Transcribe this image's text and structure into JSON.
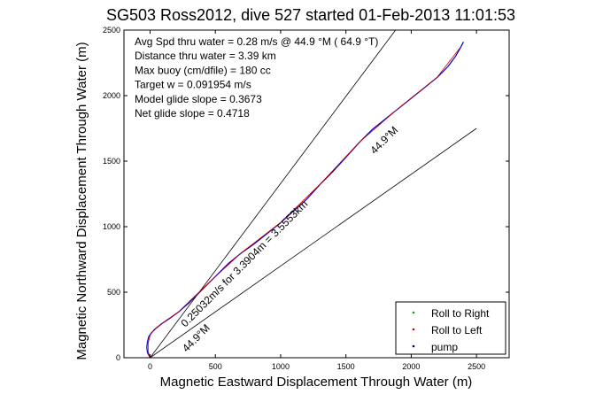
{
  "chart_data": {
    "type": "line",
    "title": "SG503 Ross2012, dive 527 started 01-Feb-2013 11:01:53",
    "xlabel": "Magnetic Eastward Displacement Through Water (m)",
    "ylabel": "Magnetic Northward Displacement Through Water (m)",
    "xlim": [
      -200,
      2750
    ],
    "ylim": [
      0,
      2500
    ],
    "xticks": [
      0,
      500,
      1000,
      1500,
      2000,
      2500
    ],
    "yticks": [
      0,
      500,
      1000,
      1500,
      2000,
      2500
    ],
    "grid": false,
    "legend_position": "bottom-right",
    "legend": [
      {
        "label": "Roll to Right",
        "color": "#00aa00",
        "marker": "."
      },
      {
        "label": "Roll to Left",
        "color": "#cc0000",
        "marker": "."
      },
      {
        "label": "pump",
        "color": "#000080",
        "marker": "."
      }
    ],
    "info_text": [
      "Avg Spd thru water =  0.28 m/s @  44.9   °M ( 64.9 °T)",
      "Distance thru water =  3.39 km",
      "Max buoy (cm/dfile) = 180 cc",
      "Target w = 0.091954 m/s",
      "Model glide slope = 0.3673",
      "Net glide slope = 0.4718"
    ],
    "annotations": [
      {
        "text": "44.9°M",
        "x": 1720,
        "y": 1550,
        "angle_deg": 45
      },
      {
        "text": "0.25032m/s for 3.3904m = 3.5553km",
        "x": 270,
        "y": 230,
        "angle_deg": 45
      },
      {
        "text": "44.9°M",
        "x": 280,
        "y": 40,
        "angle_deg": 45
      }
    ],
    "reference_lines": [
      {
        "name": "",
        "color": "#000000",
        "points": [
          [
            0,
            0
          ],
          [
            1880,
            2500
          ]
        ]
      },
      {
        "name": "",
        "color": "#000000",
        "points": [
          [
            0,
            0
          ],
          [
            2500,
            1750
          ]
        ]
      }
    ],
    "series": [
      {
        "color": "#0000cc",
        "points": [
          [
            0,
            0
          ],
          [
            -20,
            40
          ],
          [
            -25,
            80
          ],
          [
            -20,
            120
          ],
          [
            -10,
            160
          ],
          [
            10,
            190
          ],
          [
            40,
            220
          ],
          [
            90,
            260
          ],
          [
            150,
            300
          ],
          [
            220,
            350
          ],
          [
            300,
            420
          ],
          [
            380,
            500
          ],
          [
            450,
            570
          ],
          [
            520,
            640
          ],
          [
            600,
            720
          ],
          [
            700,
            800
          ],
          [
            800,
            870
          ],
          [
            900,
            950
          ],
          [
            1000,
            1030
          ],
          [
            1100,
            1120
          ],
          [
            1200,
            1210
          ],
          [
            1300,
            1320
          ],
          [
            1400,
            1420
          ],
          [
            1500,
            1530
          ],
          [
            1600,
            1640
          ],
          [
            1700,
            1740
          ],
          [
            1800,
            1820
          ],
          [
            1900,
            1900
          ],
          [
            2000,
            1980
          ],
          [
            2100,
            2060
          ],
          [
            2200,
            2140
          ],
          [
            2280,
            2220
          ],
          [
            2340,
            2300
          ],
          [
            2380,
            2370
          ],
          [
            2400,
            2410
          ]
        ]
      },
      {
        "color": "#cc0000",
        "points": [
          [
            0,
            0
          ],
          [
            -15,
            50
          ],
          [
            -15,
            110
          ],
          [
            0,
            170
          ],
          [
            30,
            215
          ],
          [
            90,
            262
          ],
          [
            220,
            352
          ],
          [
            450,
            572
          ],
          [
            700,
            802
          ],
          [
            1000,
            1032
          ],
          [
            1300,
            1322
          ],
          [
            1600,
            1642
          ],
          [
            1900,
            1902
          ],
          [
            2200,
            2142
          ],
          [
            2380,
            2372
          ]
        ]
      }
    ]
  }
}
